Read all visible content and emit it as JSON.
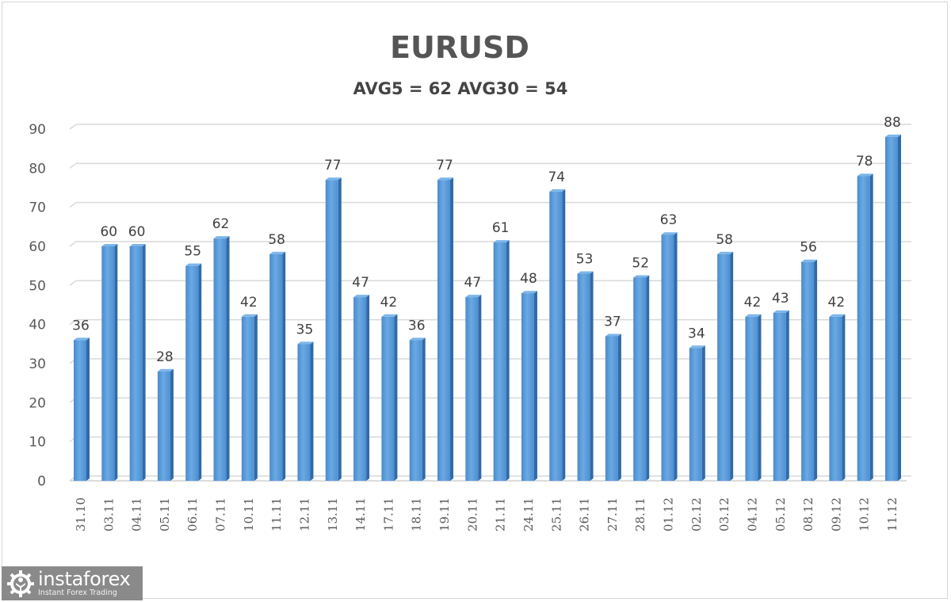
{
  "chart_data": {
    "type": "bar",
    "title": "EURUSD",
    "subtitle": "AVG5 = 62 AVG30 = 54",
    "xlabel": "",
    "ylabel": "",
    "ylim": [
      0,
      90
    ],
    "yticks": [
      0,
      10,
      20,
      30,
      40,
      50,
      60,
      70,
      80,
      90
    ],
    "grid": true,
    "legend": null,
    "data_labels": true,
    "bar_color": "#5b9bd5",
    "categories": [
      "31.10",
      "03.11",
      "04.11",
      "05.11",
      "06.11",
      "07.11",
      "10.11",
      "11.11",
      "12.11",
      "13.11",
      "14.11",
      "17.11",
      "18.11",
      "19.11",
      "20.11",
      "21.11",
      "24.11",
      "25.11",
      "26.11",
      "27.11",
      "28.11",
      "01.12",
      "02.12",
      "03.12",
      "04.12",
      "05.12",
      "08.12",
      "09.12",
      "10.12",
      "11.12"
    ],
    "values": [
      36,
      60,
      60,
      28,
      55,
      62,
      42,
      58,
      35,
      77,
      47,
      42,
      36,
      77,
      47,
      61,
      48,
      74,
      53,
      37,
      52,
      63,
      34,
      58,
      42,
      43,
      56,
      42,
      78,
      88
    ]
  },
  "header": {
    "title": "EURUSD",
    "subtitle": "AVG5 = 62 AVG30 = 54"
  },
  "watermark": {
    "brand": "instaforex",
    "tagline": "Instant Forex Trading"
  }
}
